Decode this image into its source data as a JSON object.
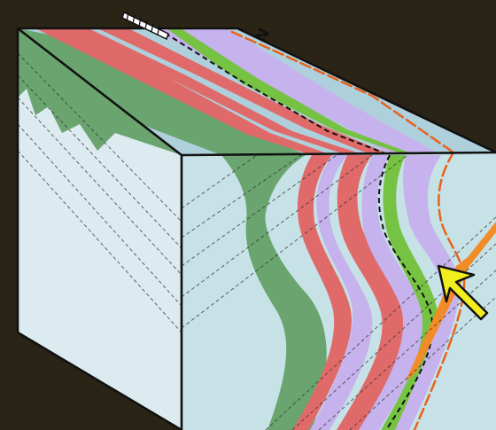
{
  "compass": {
    "label": "N",
    "arrow_icon": "north-arrow-icon"
  },
  "colors": {
    "background_texture": "#2a2416",
    "block_top": "#aed0dc",
    "block_front": "#dcebef",
    "block_side": "#c6e2e6",
    "outline": "#111111",
    "layer_dark_green": "#6aa56f",
    "layer_red": "#e06a6a",
    "layer_red_edge": "#c0392b",
    "layer_lavender": "#c6b2ec",
    "layer_green": "#76c243",
    "layer_orange": "#f28c28",
    "pointer_arrow": "#f2ee1e"
  },
  "indicator": {
    "icon": "yellow-pointer-arrow-icon"
  }
}
